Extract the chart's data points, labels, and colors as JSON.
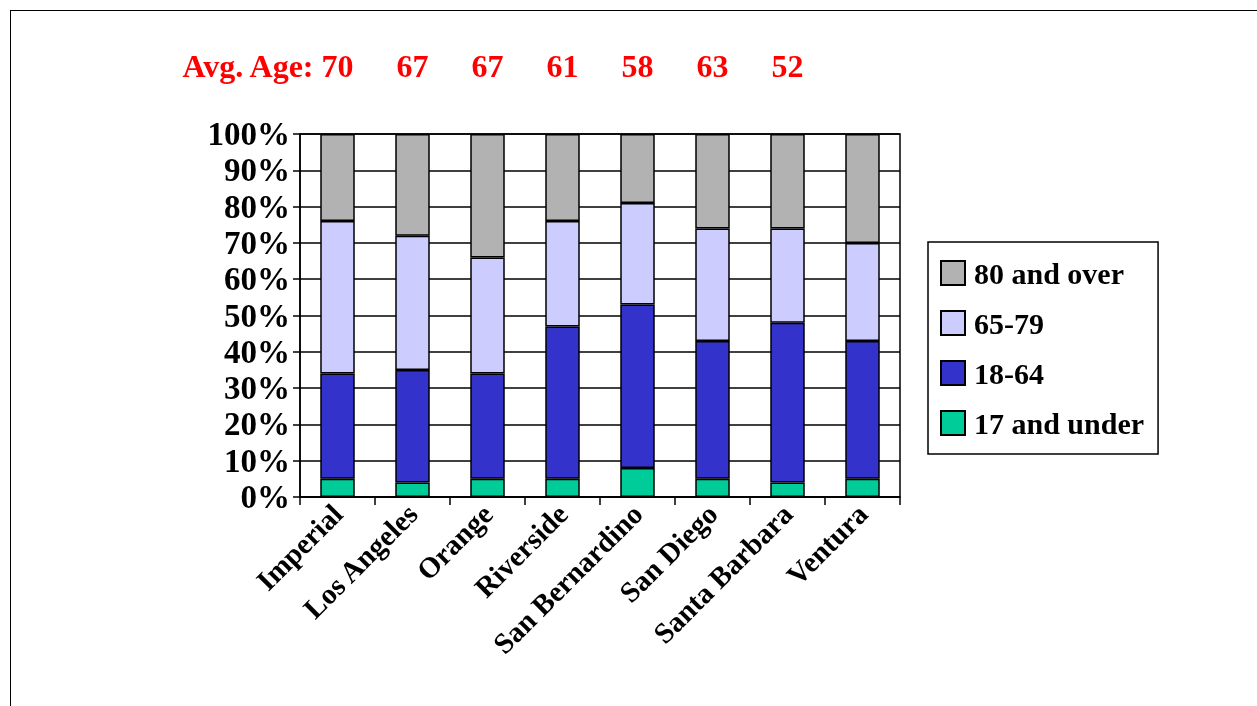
{
  "chart_data": {
    "type": "bar",
    "categories": [
      "Imperial",
      "Los Angeles",
      "Orange",
      "Riverside",
      "San Bernardino",
      "San Diego",
      "Santa Barbara",
      "Ventura"
    ],
    "series": [
      {
        "name": "17 and under",
        "color": "#00cc99",
        "values": [
          5,
          4,
          5,
          5,
          8,
          5,
          4,
          5
        ]
      },
      {
        "name": "18-64",
        "color": "#3333cc",
        "values": [
          29,
          31,
          29,
          42,
          45,
          38,
          44,
          38
        ]
      },
      {
        "name": "65-79",
        "color": "#ccccff",
        "values": [
          42,
          37,
          32,
          29,
          28,
          31,
          26,
          27
        ]
      },
      {
        "name": "80 and over",
        "color": "#b2b2b2",
        "values": [
          24,
          28,
          34,
          24,
          19,
          26,
          26,
          30
        ]
      }
    ],
    "stacked": true,
    "ylim": [
      0,
      100
    ],
    "yticks": [
      {
        "value": 0,
        "label": "0%"
      },
      {
        "value": 10,
        "label": "10%"
      },
      {
        "value": 20,
        "label": "20%"
      },
      {
        "value": 30,
        "label": "30%"
      },
      {
        "value": 40,
        "label": "40%"
      },
      {
        "value": 50,
        "label": "50%"
      },
      {
        "value": 60,
        "label": "60%"
      },
      {
        "value": 70,
        "label": "70%"
      },
      {
        "value": 80,
        "label": "80%"
      },
      {
        "value": 90,
        "label": "90%"
      },
      {
        "value": 100,
        "label": "100%"
      }
    ],
    "grid": "y",
    "legend": "right",
    "annotations": [
      "Avg. Age:",
      "70",
      "67",
      "67",
      "61",
      "58",
      "63",
      "52"
    ]
  }
}
